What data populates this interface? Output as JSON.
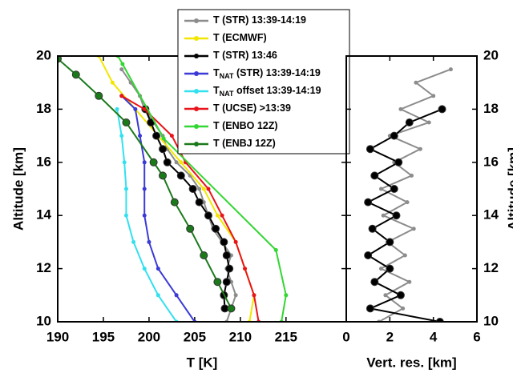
{
  "chart_data": [
    {
      "type": "line",
      "x_label": "T [K]",
      "y_label": "Altitude [km]",
      "y_label_side": "left",
      "xlim": [
        190,
        221.6
      ],
      "ylim": [
        10,
        20
      ],
      "xticks": [
        190,
        195,
        200,
        205,
        210,
        215
      ],
      "yticks": [
        10,
        12,
        14,
        16,
        18,
        20
      ],
      "legend": "upper right",
      "series": [
        {
          "name": "T (STR) 13:39-14:19",
          "color": "#8c8c8c",
          "x": [
            208.5,
            209,
            209.5,
            209,
            208.5,
            209,
            208,
            207,
            206.5,
            206,
            205.5,
            204.5,
            203,
            202,
            201.5,
            200.5,
            199.5,
            199,
            198,
            197
          ],
          "y": [
            10,
            10.5,
            11,
            11.5,
            12,
            12.5,
            13,
            13.5,
            14,
            14.5,
            15,
            15.5,
            16,
            16.5,
            17,
            17.5,
            18,
            18.5,
            19,
            19.5
          ]
        },
        {
          "name": "T (ECMWF)",
          "color": "#f2e600",
          "x": [
            211,
            211.5,
            210.5,
            209.5,
            207.5,
            206,
            203.5,
            201,
            198.5,
            196,
            194.5
          ],
          "y": [
            10,
            11,
            12,
            13,
            14,
            15,
            16,
            17,
            18,
            19,
            20
          ]
        },
        {
          "name": "T (STR) 13:46",
          "color": "#000000",
          "x": [
            208.3,
            208.2,
            208.5,
            208.8,
            208.5,
            208.2,
            207.3,
            206.5,
            205.5,
            204.8,
            203.5,
            202,
            201.5,
            200.8,
            200.2,
            199.6
          ],
          "y": [
            10.5,
            11,
            11.5,
            12,
            12.5,
            13,
            13.5,
            14,
            14.5,
            15,
            15.5,
            16,
            16.5,
            17,
            17.5,
            18
          ]
        },
        {
          "name": "T",
          "name_sub": "NAT",
          "name_suffix": " (STR) 13:39-14:19",
          "color": "#3a3ad6",
          "x": [
            205,
            203,
            201,
            200,
            199.5,
            199.5,
            199.5,
            199,
            198.5,
            197
          ],
          "y": [
            10,
            11,
            12,
            13,
            14,
            15,
            16,
            17,
            18,
            18.5
          ]
        },
        {
          "name": "T",
          "name_sub": "NAT",
          "name_suffix": " offset 13:39-14:19",
          "color": "#33e0f0",
          "x": [
            203,
            201,
            199.5,
            198.3,
            197.5,
            197.5,
            197.3,
            197,
            196.5
          ],
          "y": [
            10,
            11,
            12,
            13,
            14,
            15,
            16,
            17,
            18
          ]
        },
        {
          "name": "T (UCSE) >13:39",
          "color": "#e8141a",
          "x": [
            212,
            211.5,
            210.5,
            209.5,
            208,
            206.5,
            204,
            202.5,
            199.5,
            197
          ],
          "y": [
            10,
            11,
            12,
            13,
            14,
            15,
            16,
            17,
            18,
            18.5
          ]
        },
        {
          "name": "T (ENBO 12Z)",
          "color": "#33d633",
          "x": [
            214.5,
            215,
            213.9,
            201.6,
            197.1,
            196.6
          ],
          "y": [
            10,
            11,
            12.7,
            16.9,
            19.7,
            20
          ]
        },
        {
          "name": "T (ENBJ  12Z)",
          "color": "#1a7a1a",
          "x": [
            209,
            207.5,
            206,
            204.5,
            202.8,
            201.5,
            200.5,
            197.5,
            194.5,
            192,
            190
          ],
          "y": [
            10.5,
            11.5,
            12.5,
            13.5,
            14.5,
            15.5,
            16,
            17.5,
            18.5,
            19.3,
            19.9
          ]
        }
      ]
    },
    {
      "type": "line",
      "x_label": "Vert.  res. [km]",
      "y_label": "Altitude [km]",
      "y_label_side": "right",
      "xlim": [
        0,
        6
      ],
      "ylim": [
        10,
        20
      ],
      "xticks": [
        0,
        2,
        4,
        6
      ],
      "yticks": [
        10,
        12,
        14,
        16,
        18,
        20
      ],
      "series": [
        {
          "color": "#8c8c8c",
          "x": [
            1.5,
            2.6,
            1.8,
            2.9,
            1.6,
            2.7,
            1.9,
            3.1,
            1.7,
            2.8,
            1.6,
            3.0,
            2.2,
            3.4,
            2.0,
            3.8,
            2.5,
            4.0,
            3.2,
            4.8
          ],
          "y": [
            10,
            10.5,
            11,
            11.5,
            12,
            12.5,
            13,
            13.5,
            14,
            14.5,
            15,
            15.5,
            16,
            16.5,
            17,
            17.5,
            18,
            18.5,
            19,
            19.5
          ]
        },
        {
          "color": "#000000",
          "x": [
            4.3,
            1.1,
            2.5,
            1.3,
            2.0,
            1.0,
            2.0,
            1.2,
            2.3,
            1.0,
            2.2,
            1.3,
            2.4,
            1.1,
            2.2,
            2.9,
            4.4
          ],
          "y": [
            10,
            10.5,
            11,
            11.5,
            12,
            12.5,
            13,
            13.5,
            14,
            14.5,
            15,
            15.5,
            16,
            16.5,
            17,
            17.5,
            18
          ]
        }
      ]
    }
  ]
}
